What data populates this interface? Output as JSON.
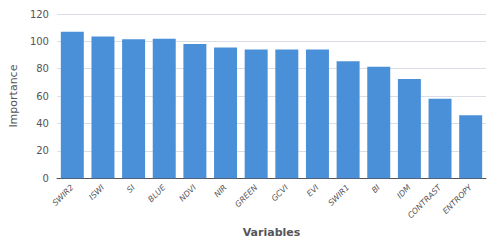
{
  "chart_data": {
    "type": "bar",
    "categories": [
      "SWIR2",
      "ISWI",
      "SI",
      "BLUE",
      "NDVI",
      "NIR",
      "GREEN",
      "GCVI",
      "EVI",
      "SWIR1",
      "BI",
      "IDM",
      "CONTRAST",
      "ENTROPY"
    ],
    "values": [
      107,
      103.5,
      101.5,
      102,
      98,
      95.5,
      94,
      94,
      94,
      85.5,
      81.5,
      72.5,
      58,
      46
    ],
    "color": "#4a90d9",
    "xlabel": "Variables",
    "ylabel": "Importance",
    "ylim": [
      0,
      120
    ],
    "yticks": [
      0,
      20,
      40,
      60,
      80,
      100,
      120
    ],
    "grid": true
  }
}
